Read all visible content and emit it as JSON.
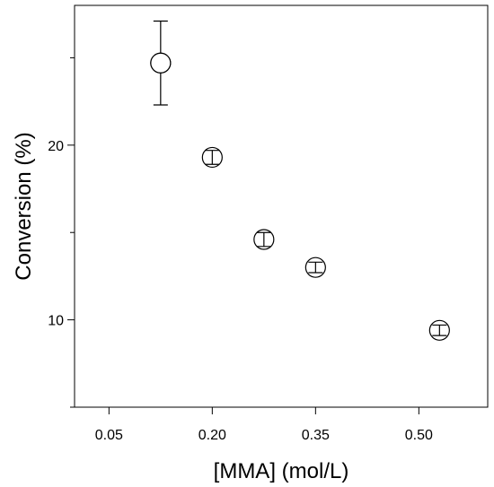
{
  "chart_data": {
    "type": "scatter",
    "title": "",
    "xlabel": "[MMA] (mol/L)",
    "ylabel": "Conversion (%)",
    "xlim": [
      0.0,
      0.6
    ],
    "ylim": [
      5,
      28
    ],
    "x_ticks": [
      0.05,
      0.2,
      0.35,
      0.5
    ],
    "x_tick_labels": [
      "0.05",
      "0.20",
      "0.35",
      "0.50"
    ],
    "y_ticks": [
      10,
      20
    ],
    "y_tick_labels": [
      "10",
      "20"
    ],
    "y_minor_ticks": [
      5,
      15,
      25
    ],
    "grid": false,
    "series": [
      {
        "marker": "open-circle",
        "points": [
          {
            "x": 0.125,
            "y": 24.7,
            "err_low": 22.3,
            "err_high": 27.1
          },
          {
            "x": 0.2,
            "y": 19.3,
            "err_low": 18.9,
            "err_high": 19.7
          },
          {
            "x": 0.275,
            "y": 14.6,
            "err_low": 14.2,
            "err_high": 15.0
          },
          {
            "x": 0.35,
            "y": 13.0,
            "err_low": 12.7,
            "err_high": 13.3
          },
          {
            "x": 0.53,
            "y": 9.4,
            "err_low": 9.1,
            "err_high": 9.7
          }
        ]
      }
    ]
  }
}
